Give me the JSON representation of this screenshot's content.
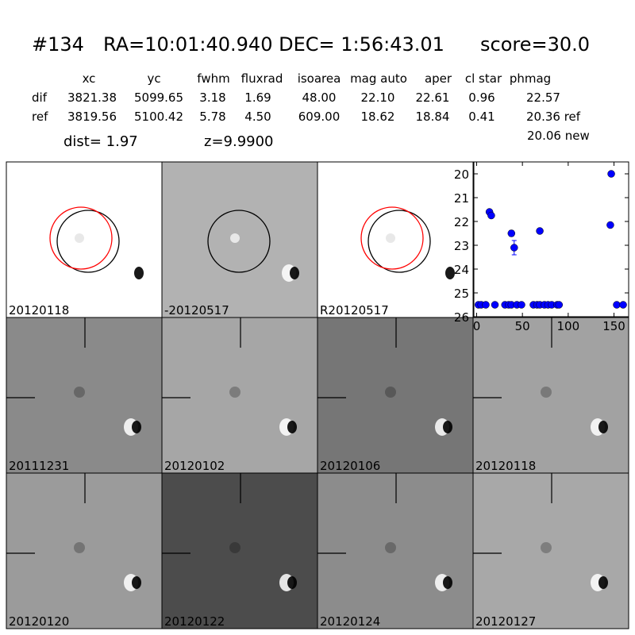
{
  "header": {
    "id": "#134",
    "radec": "RA=10:01:40.940 DEC= 1:56:43.01",
    "score": "score=30.0"
  },
  "table": {
    "columns": [
      "xc",
      "yc",
      "fwhm",
      "fluxrad",
      "isoarea",
      "mag auto",
      "aper",
      "cl star",
      "phmag"
    ],
    "rows": [
      [
        "dif",
        "3821.38",
        "5099.65",
        "3.18",
        "1.69",
        "48.00",
        "22.10",
        "22.61",
        "0.96",
        "22.57"
      ],
      [
        "ref",
        "3819.56",
        "5100.42",
        "5.78",
        "4.50",
        "609.00",
        "18.62",
        "18.84",
        "0.41",
        "20.36 ref"
      ]
    ],
    "extra": "20.06 new"
  },
  "info": {
    "dist": "dist=  1.97",
    "z": "z=9.9900"
  },
  "panels": [
    {
      "label": "20120118",
      "bg": "#ffffff",
      "color": "#000000"
    },
    {
      "label": "-20120517",
      "bg": "#b2b2b2",
      "color": "#000000"
    },
    {
      "label": "R20120517",
      "bg": "#ffffff",
      "color": "#000000"
    },
    {
      "label": "20111231",
      "bg": "#8a8a8a",
      "color": "#000000"
    },
    {
      "label": "20120102",
      "bg": "#a6a6a6",
      "color": "#000000"
    },
    {
      "label": "20120106",
      "bg": "#767676",
      "color": "#000000"
    },
    {
      "label": "20120118",
      "bg": "#a2a2a2",
      "color": "#ff0000"
    },
    {
      "label": "20120120",
      "bg": "#9b9b9b",
      "color": "#000000"
    },
    {
      "label": "20120122",
      "bg": "#4c4c4c",
      "color": "#000000"
    },
    {
      "label": "20120124",
      "bg": "#8c8c8c",
      "color": "#000000"
    },
    {
      "label": "20120127",
      "bg": "#a8a8a8",
      "color": "#000000"
    }
  ],
  "chart_data": {
    "type": "scatter",
    "color": "#0000ff",
    "y_inverted": true,
    "x": [
      2,
      5,
      10,
      14,
      16,
      20,
      31,
      35,
      38,
      38,
      41,
      44,
      49,
      62,
      66,
      69,
      69,
      74,
      78,
      82,
      88,
      90,
      146,
      147,
      153,
      160
    ],
    "values": [
      25.5,
      25.5,
      25.5,
      21.6,
      21.75,
      25.5,
      25.5,
      25.5,
      25.5,
      22.5,
      23.1,
      25.5,
      25.5,
      25.5,
      25.5,
      25.5,
      22.4,
      25.5,
      25.5,
      25.5,
      25.5,
      25.5,
      22.15,
      20.0,
      25.5,
      25.5
    ],
    "errors": [
      null,
      null,
      null,
      null,
      null,
      null,
      null,
      null,
      null,
      0.12,
      0.3,
      null,
      null,
      null,
      null,
      null,
      0.1,
      null,
      null,
      null,
      null,
      null,
      0.08,
      null,
      null,
      null
    ],
    "xlim": [
      -3,
      166
    ],
    "xticks": [
      0,
      50,
      100,
      150
    ],
    "ylim": [
      19.5,
      26
    ],
    "yticks": [
      20,
      21,
      22,
      23,
      24,
      25,
      26
    ]
  }
}
